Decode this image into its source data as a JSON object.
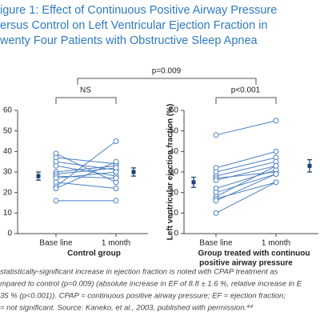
{
  "figure": {
    "title_lines": [
      "igure 1: Effect of Continuous Positive Airway Pressure",
      "ersus Control on Left Ventricular Ejection Fraction in",
      "wenty Four Patients with Obstructive Sleep Apnea"
    ],
    "comparison": {
      "overall": "p=0.009",
      "control": "NS",
      "cpap": "p<0.001"
    },
    "caption_lines": [
      "statistically-significant increase in ejection fraction is noted with CPAP treatment as",
      "mpared to control (p=0.009) (absolute increase in EF of 8.8 ± 1.6 %, relative increase in E",
      "35 % (p<0.001)). CPAP = continuous positive airway pressure; EF = ejection fraction;",
      "= not significant. Source: Kaneko, et al., 2003, published with permission.⁴⁴"
    ]
  },
  "chart_data": [
    {
      "type": "paired",
      "xlabel": [
        "Control group"
      ],
      "categories": [
        "Base line",
        "1 month"
      ],
      "ylim": [
        0,
        60
      ],
      "yticks": [
        0,
        10,
        20,
        30,
        40,
        50,
        60
      ],
      "color": "#4a7fc1",
      "mean_color": "#1d3f7a",
      "series": [
        {
          "values": [
            39,
            25
          ]
        },
        {
          "values": [
            37,
            34
          ]
        },
        {
          "values": [
            35,
            31
          ]
        },
        {
          "values": [
            33,
            28
          ]
        },
        {
          "values": [
            30,
            33
          ]
        },
        {
          "values": [
            29,
            32
          ]
        },
        {
          "values": [
            28,
            27
          ]
        },
        {
          "values": [
            27,
            30
          ]
        },
        {
          "values": [
            25,
            22
          ]
        },
        {
          "values": [
            23,
            45
          ]
        },
        {
          "values": [
            22,
            35
          ]
        },
        {
          "values": [
            16,
            16
          ]
        }
      ],
      "means": [
        28,
        30
      ],
      "errors": [
        2,
        2
      ]
    },
    {
      "type": "paired",
      "ylabel": "Left ventricular ejection fraction (%)",
      "xlabel": [
        "Group treated with continuou",
        "positive airway pressure"
      ],
      "categories": [
        "Base line",
        "1 month"
      ],
      "ylim": [
        0,
        60
      ],
      "yticks": [
        0,
        10,
        20,
        30,
        40,
        50,
        60
      ],
      "color": "#4a7fc1",
      "mean_color": "#1d3f7a",
      "series": [
        {
          "values": [
            48,
            55
          ]
        },
        {
          "values": [
            32,
            40
          ]
        },
        {
          "values": [
            30,
            37
          ]
        },
        {
          "values": [
            28,
            35
          ]
        },
        {
          "values": [
            27,
            30
          ]
        },
        {
          "values": [
            26,
            33
          ]
        },
        {
          "values": [
            22,
            31
          ]
        },
        {
          "values": [
            20,
            29
          ]
        },
        {
          "values": [
            18,
            33
          ]
        },
        {
          "values": [
            17,
            25
          ]
        },
        {
          "values": [
            16,
            29
          ]
        },
        {
          "values": [
            10,
            25
          ]
        }
      ],
      "means": [
        25,
        33
      ],
      "errors": [
        2.5,
        3
      ]
    }
  ]
}
